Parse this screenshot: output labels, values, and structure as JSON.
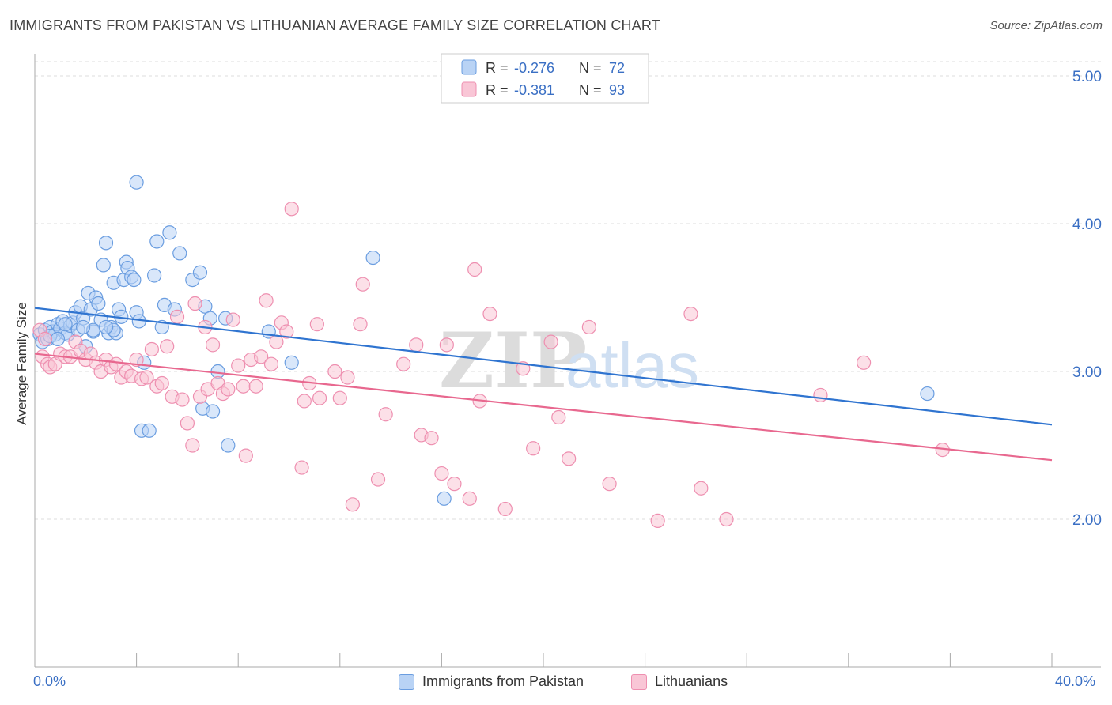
{
  "header": {
    "title": "IMMIGRANTS FROM PAKISTAN VS LITHUANIAN AVERAGE FAMILY SIZE CORRELATION CHART",
    "source": "Source: ZipAtlas.com"
  },
  "watermark": {
    "zip": "ZIP",
    "atlas": "atlas"
  },
  "colors": {
    "blue_fill": "#b9d3f5",
    "blue_stroke": "#6a9de0",
    "blue_line": "#2f74d0",
    "pink_fill": "#f9c6d6",
    "pink_stroke": "#ee8fb0",
    "pink_line": "#e8688f",
    "tick_text": "#3a6fc4",
    "grid": "#dddddd"
  },
  "legend": {
    "rows": [
      {
        "r_label": "R =",
        "r_value": "-0.276",
        "n_label": "N =",
        "n_value": "72"
      },
      {
        "r_label": "R =",
        "r_value": "-0.381",
        "n_label": "N =",
        "n_value": "93"
      }
    ]
  },
  "chart_data": {
    "type": "scatter",
    "xlabel": "",
    "ylabel": "Average Family Size",
    "xlim": [
      0,
      40
    ],
    "ylim": [
      1.0,
      5.15
    ],
    "x_tick_labels": [
      "0.0%",
      "40.0%"
    ],
    "y_ticks": [
      2.0,
      3.0,
      4.0,
      5.0
    ],
    "y_tick_labels": [
      "2.00",
      "3.00",
      "4.00",
      "5.00"
    ],
    "grid": true,
    "legend_position": "top-center",
    "series": [
      {
        "name": "Immigrants from Pakistan",
        "trend": {
          "x": [
            0,
            40
          ],
          "y": [
            3.43,
            2.64
          ]
        },
        "points": [
          [
            0.2,
            3.25
          ],
          [
            0.3,
            3.2
          ],
          [
            0.4,
            3.28
          ],
          [
            0.5,
            3.22
          ],
          [
            0.6,
            3.3
          ],
          [
            0.7,
            3.27
          ],
          [
            0.8,
            3.25
          ],
          [
            0.9,
            3.32
          ],
          [
            1.0,
            3.29
          ],
          [
            1.1,
            3.34
          ],
          [
            1.2,
            3.26
          ],
          [
            1.3,
            3.25
          ],
          [
            1.4,
            3.31
          ],
          [
            1.5,
            3.33
          ],
          [
            1.6,
            3.4
          ],
          [
            1.7,
            3.28
          ],
          [
            1.8,
            3.44
          ],
          [
            1.9,
            3.36
          ],
          [
            2.0,
            3.17
          ],
          [
            2.1,
            3.53
          ],
          [
            2.2,
            3.42
          ],
          [
            2.3,
            3.27
          ],
          [
            2.4,
            3.5
          ],
          [
            2.5,
            3.46
          ],
          [
            2.6,
            3.35
          ],
          [
            2.7,
            3.72
          ],
          [
            2.8,
            3.87
          ],
          [
            2.9,
            3.26
          ],
          [
            3.0,
            3.3
          ],
          [
            3.1,
            3.6
          ],
          [
            3.2,
            3.26
          ],
          [
            3.3,
            3.42
          ],
          [
            3.4,
            3.37
          ],
          [
            3.5,
            3.62
          ],
          [
            3.6,
            3.74
          ],
          [
            3.65,
            3.7
          ],
          [
            3.8,
            3.64
          ],
          [
            3.9,
            3.62
          ],
          [
            4.0,
            3.4
          ],
          [
            4.1,
            3.34
          ],
          [
            4.0,
            4.28
          ],
          [
            4.2,
            2.6
          ],
          [
            4.3,
            3.06
          ],
          [
            4.5,
            2.6
          ],
          [
            4.7,
            3.65
          ],
          [
            4.8,
            3.88
          ],
          [
            5.0,
            3.3
          ],
          [
            5.1,
            3.45
          ],
          [
            5.3,
            3.94
          ],
          [
            5.5,
            3.42
          ],
          [
            5.7,
            3.8
          ],
          [
            6.2,
            3.62
          ],
          [
            6.5,
            3.67
          ],
          [
            6.7,
            3.44
          ],
          [
            6.9,
            3.36
          ],
          [
            7.2,
            3.0
          ],
          [
            6.6,
            2.75
          ],
          [
            7.0,
            2.73
          ],
          [
            7.5,
            3.36
          ],
          [
            7.6,
            2.5
          ],
          [
            9.2,
            3.27
          ],
          [
            10.1,
            3.06
          ],
          [
            13.3,
            3.77
          ],
          [
            16.1,
            2.14
          ],
          [
            35.1,
            2.85
          ],
          [
            1.2,
            3.32
          ],
          [
            2.3,
            3.28
          ],
          [
            0.6,
            3.24
          ],
          [
            1.9,
            3.3
          ],
          [
            3.1,
            3.28
          ],
          [
            0.9,
            3.22
          ],
          [
            2.8,
            3.3
          ]
        ]
      },
      {
        "name": "Lithuanians",
        "trend": {
          "x": [
            0,
            40
          ],
          "y": [
            3.12,
            2.4
          ]
        },
        "points": [
          [
            0.2,
            3.28
          ],
          [
            0.3,
            3.1
          ],
          [
            0.4,
            3.22
          ],
          [
            0.5,
            3.05
          ],
          [
            0.6,
            3.03
          ],
          [
            0.8,
            3.05
          ],
          [
            1.0,
            3.12
          ],
          [
            1.2,
            3.1
          ],
          [
            1.4,
            3.1
          ],
          [
            1.6,
            3.2
          ],
          [
            1.8,
            3.14
          ],
          [
            2.0,
            3.08
          ],
          [
            2.2,
            3.12
          ],
          [
            2.4,
            3.06
          ],
          [
            2.6,
            3.0
          ],
          [
            2.8,
            3.08
          ],
          [
            3.0,
            3.03
          ],
          [
            3.2,
            3.05
          ],
          [
            3.4,
            2.96
          ],
          [
            3.6,
            3.0
          ],
          [
            3.8,
            2.97
          ],
          [
            4.0,
            3.08
          ],
          [
            4.2,
            2.95
          ],
          [
            4.4,
            2.96
          ],
          [
            4.6,
            3.15
          ],
          [
            4.8,
            2.9
          ],
          [
            5.0,
            2.92
          ],
          [
            5.2,
            3.17
          ],
          [
            5.4,
            2.83
          ],
          [
            5.6,
            3.37
          ],
          [
            5.8,
            2.81
          ],
          [
            6.0,
            2.65
          ],
          [
            6.2,
            2.5
          ],
          [
            6.3,
            3.46
          ],
          [
            6.5,
            2.83
          ],
          [
            6.7,
            3.3
          ],
          [
            6.8,
            2.88
          ],
          [
            7.0,
            3.18
          ],
          [
            7.2,
            2.92
          ],
          [
            7.4,
            2.85
          ],
          [
            7.6,
            2.88
          ],
          [
            7.8,
            3.35
          ],
          [
            8.0,
            3.04
          ],
          [
            8.2,
            2.9
          ],
          [
            8.3,
            2.43
          ],
          [
            8.5,
            3.08
          ],
          [
            8.7,
            2.9
          ],
          [
            8.9,
            3.1
          ],
          [
            9.1,
            3.48
          ],
          [
            9.3,
            3.05
          ],
          [
            9.5,
            3.2
          ],
          [
            9.7,
            3.33
          ],
          [
            9.9,
            3.27
          ],
          [
            10.1,
            4.1
          ],
          [
            10.5,
            2.35
          ],
          [
            10.6,
            2.8
          ],
          [
            10.8,
            2.92
          ],
          [
            11.2,
            2.82
          ],
          [
            11.1,
            3.32
          ],
          [
            11.8,
            3.0
          ],
          [
            12.0,
            2.82
          ],
          [
            12.3,
            2.96
          ],
          [
            12.5,
            2.1
          ],
          [
            12.8,
            3.32
          ],
          [
            12.9,
            3.59
          ],
          [
            13.5,
            2.27
          ],
          [
            13.8,
            2.71
          ],
          [
            14.5,
            3.05
          ],
          [
            15.2,
            2.57
          ],
          [
            15.6,
            2.55
          ],
          [
            16.0,
            2.31
          ],
          [
            16.2,
            3.18
          ],
          [
            16.5,
            2.24
          ],
          [
            17.1,
            2.14
          ],
          [
            17.3,
            3.69
          ],
          [
            17.5,
            2.8
          ],
          [
            17.9,
            3.39
          ],
          [
            18.5,
            2.07
          ],
          [
            19.2,
            3.02
          ],
          [
            19.6,
            2.48
          ],
          [
            20.3,
            3.2
          ],
          [
            20.6,
            2.69
          ],
          [
            21.0,
            2.41
          ],
          [
            21.8,
            3.3
          ],
          [
            22.6,
            2.24
          ],
          [
            24.5,
            1.99
          ],
          [
            25.8,
            3.39
          ],
          [
            26.2,
            2.21
          ],
          [
            27.2,
            2.0
          ],
          [
            30.9,
            2.84
          ],
          [
            32.6,
            3.06
          ],
          [
            35.7,
            2.47
          ],
          [
            15.0,
            3.18
          ]
        ]
      }
    ]
  },
  "bottom_legend": {
    "items": [
      {
        "label": "Immigrants from Pakistan"
      },
      {
        "label": "Lithuanians"
      }
    ]
  }
}
